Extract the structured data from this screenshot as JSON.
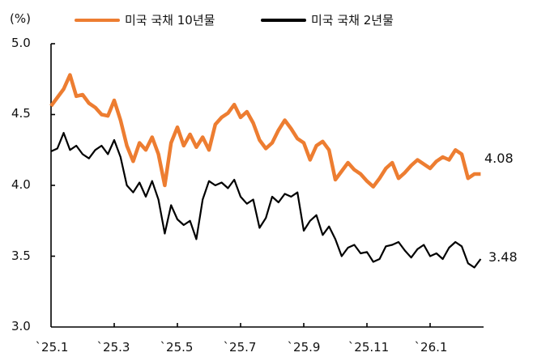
{
  "chart_data": {
    "type": "line",
    "title": "",
    "unit_label": "(%)",
    "xlabel": "",
    "ylabel": "(%)",
    "ylim": [
      3.0,
      5.0
    ],
    "yticks": [
      "5.0",
      "4.5",
      "4.0",
      "3.5",
      "3.0"
    ],
    "xticks": [
      "`25.1",
      "`25.3",
      "`25.5",
      "`25.7",
      "`25.9",
      "`25.11",
      "`26.1"
    ],
    "x_range_months": [
      0,
      13.6
    ],
    "grid": false,
    "legend_position": "top",
    "series": [
      {
        "name": "미국 국채 10년물",
        "color": "#ED7D31",
        "end_label": "4.08",
        "x": [
          0,
          0.2,
          0.4,
          0.6,
          0.8,
          1.0,
          1.2,
          1.4,
          1.6,
          1.8,
          2.0,
          2.2,
          2.4,
          2.6,
          2.8,
          3.0,
          3.2,
          3.4,
          3.6,
          3.8,
          4.0,
          4.2,
          4.4,
          4.6,
          4.8,
          5.0,
          5.2,
          5.4,
          5.6,
          5.8,
          6.0,
          6.2,
          6.4,
          6.6,
          6.8,
          7.0,
          7.2,
          7.4,
          7.6,
          7.8,
          8.0,
          8.2,
          8.4,
          8.6,
          8.8,
          9.0,
          9.2,
          9.4,
          9.6,
          9.8,
          10.0,
          10.2,
          10.4,
          10.6,
          10.8,
          11.0,
          11.2,
          11.4,
          11.6,
          11.8,
          12.0,
          12.2,
          12.4,
          12.6,
          12.8,
          13.0,
          13.2,
          13.4,
          13.6
        ],
        "values": [
          4.56,
          4.62,
          4.68,
          4.78,
          4.63,
          4.64,
          4.58,
          4.55,
          4.5,
          4.49,
          4.6,
          4.46,
          4.28,
          4.17,
          4.3,
          4.25,
          4.34,
          4.22,
          4.0,
          4.3,
          4.41,
          4.28,
          4.36,
          4.27,
          4.34,
          4.25,
          4.43,
          4.48,
          4.51,
          4.57,
          4.48,
          4.52,
          4.44,
          4.32,
          4.26,
          4.3,
          4.39,
          4.46,
          4.4,
          4.33,
          4.3,
          4.18,
          4.28,
          4.31,
          4.25,
          4.04,
          4.1,
          4.16,
          4.11,
          4.08,
          4.03,
          3.99,
          4.05,
          4.12,
          4.16,
          4.05,
          4.09,
          4.14,
          4.18,
          4.15,
          4.12,
          4.17,
          4.2,
          4.18,
          4.25,
          4.22,
          4.05,
          4.08,
          4.08
        ],
        "last_value": 4.08
      },
      {
        "name": "미국 국채 2년물",
        "color": "#000000",
        "end_label": "3.48",
        "x": [
          0,
          0.2,
          0.4,
          0.6,
          0.8,
          1.0,
          1.2,
          1.4,
          1.6,
          1.8,
          2.0,
          2.2,
          2.4,
          2.6,
          2.8,
          3.0,
          3.2,
          3.4,
          3.6,
          3.8,
          4.0,
          4.2,
          4.4,
          4.6,
          4.8,
          5.0,
          5.2,
          5.4,
          5.6,
          5.8,
          6.0,
          6.2,
          6.4,
          6.6,
          6.8,
          7.0,
          7.2,
          7.4,
          7.6,
          7.8,
          8.0,
          8.2,
          8.4,
          8.6,
          8.8,
          9.0,
          9.2,
          9.4,
          9.6,
          9.8,
          10.0,
          10.2,
          10.4,
          10.6,
          10.8,
          11.0,
          11.2,
          11.4,
          11.6,
          11.8,
          12.0,
          12.2,
          12.4,
          12.6,
          12.8,
          13.0,
          13.2,
          13.4,
          13.6
        ],
        "values": [
          4.24,
          4.26,
          4.37,
          4.25,
          4.28,
          4.22,
          4.19,
          4.25,
          4.28,
          4.22,
          4.32,
          4.2,
          4.0,
          3.95,
          4.02,
          3.92,
          4.03,
          3.9,
          3.66,
          3.86,
          3.76,
          3.72,
          3.75,
          3.62,
          3.9,
          4.03,
          4.0,
          4.02,
          3.98,
          4.04,
          3.92,
          3.87,
          3.9,
          3.7,
          3.77,
          3.92,
          3.88,
          3.94,
          3.92,
          3.95,
          3.68,
          3.75,
          3.79,
          3.65,
          3.71,
          3.62,
          3.5,
          3.56,
          3.58,
          3.52,
          3.53,
          3.46,
          3.48,
          3.57,
          3.58,
          3.6,
          3.54,
          3.49,
          3.55,
          3.58,
          3.5,
          3.52,
          3.48,
          3.56,
          3.6,
          3.57,
          3.45,
          3.42,
          3.48
        ],
        "last_value": 3.48
      }
    ]
  },
  "legend": {
    "items": [
      {
        "label": "미국 국채 10년물",
        "color": "#ED7D31"
      },
      {
        "label": "미국 국채 2년물",
        "color": "#000000"
      }
    ]
  },
  "axis": {
    "unit": "(%)"
  }
}
